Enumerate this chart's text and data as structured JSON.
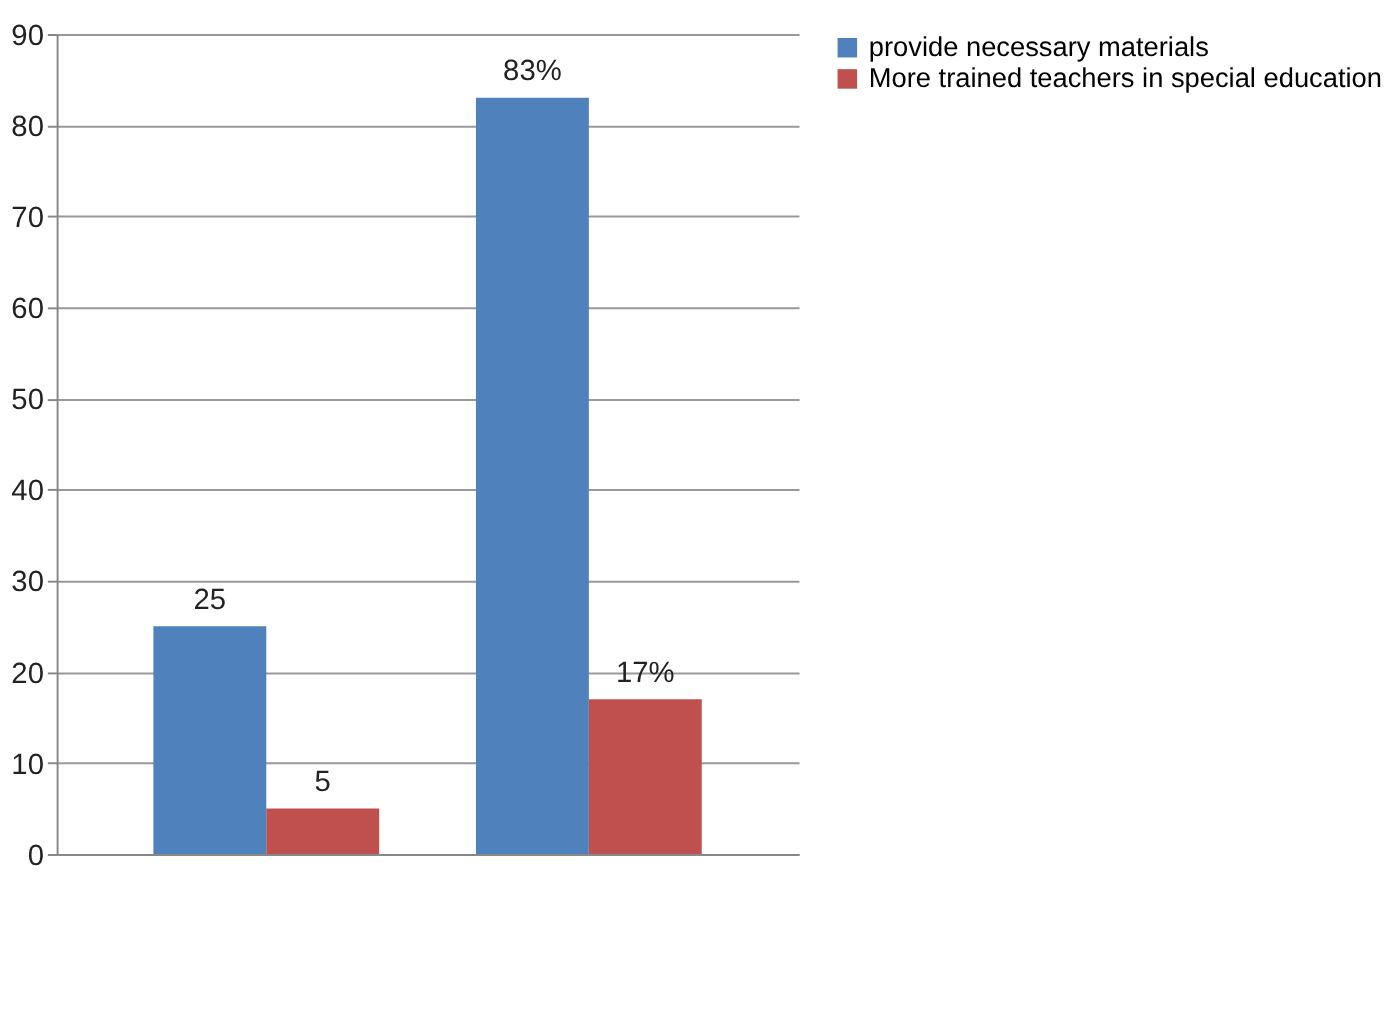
{
  "chart_data": {
    "type": "bar",
    "categories": [
      null,
      null
    ],
    "series": [
      {
        "name": "provide necessary materials",
        "color": "#4f81bd",
        "values": [
          25,
          83
        ],
        "value_labels": [
          "25",
          "83%"
        ]
      },
      {
        "name": "More trained teachers in special education",
        "color": "#c0504d",
        "values": [
          5,
          17
        ],
        "value_labels": [
          "5",
          "17%"
        ]
      }
    ],
    "ylim": [
      0,
      90
    ],
    "yticks": [
      0,
      10,
      20,
      30,
      40,
      50,
      60,
      70,
      80,
      90
    ],
    "grid": "y",
    "legend": "right",
    "tick_labels": "y"
  }
}
